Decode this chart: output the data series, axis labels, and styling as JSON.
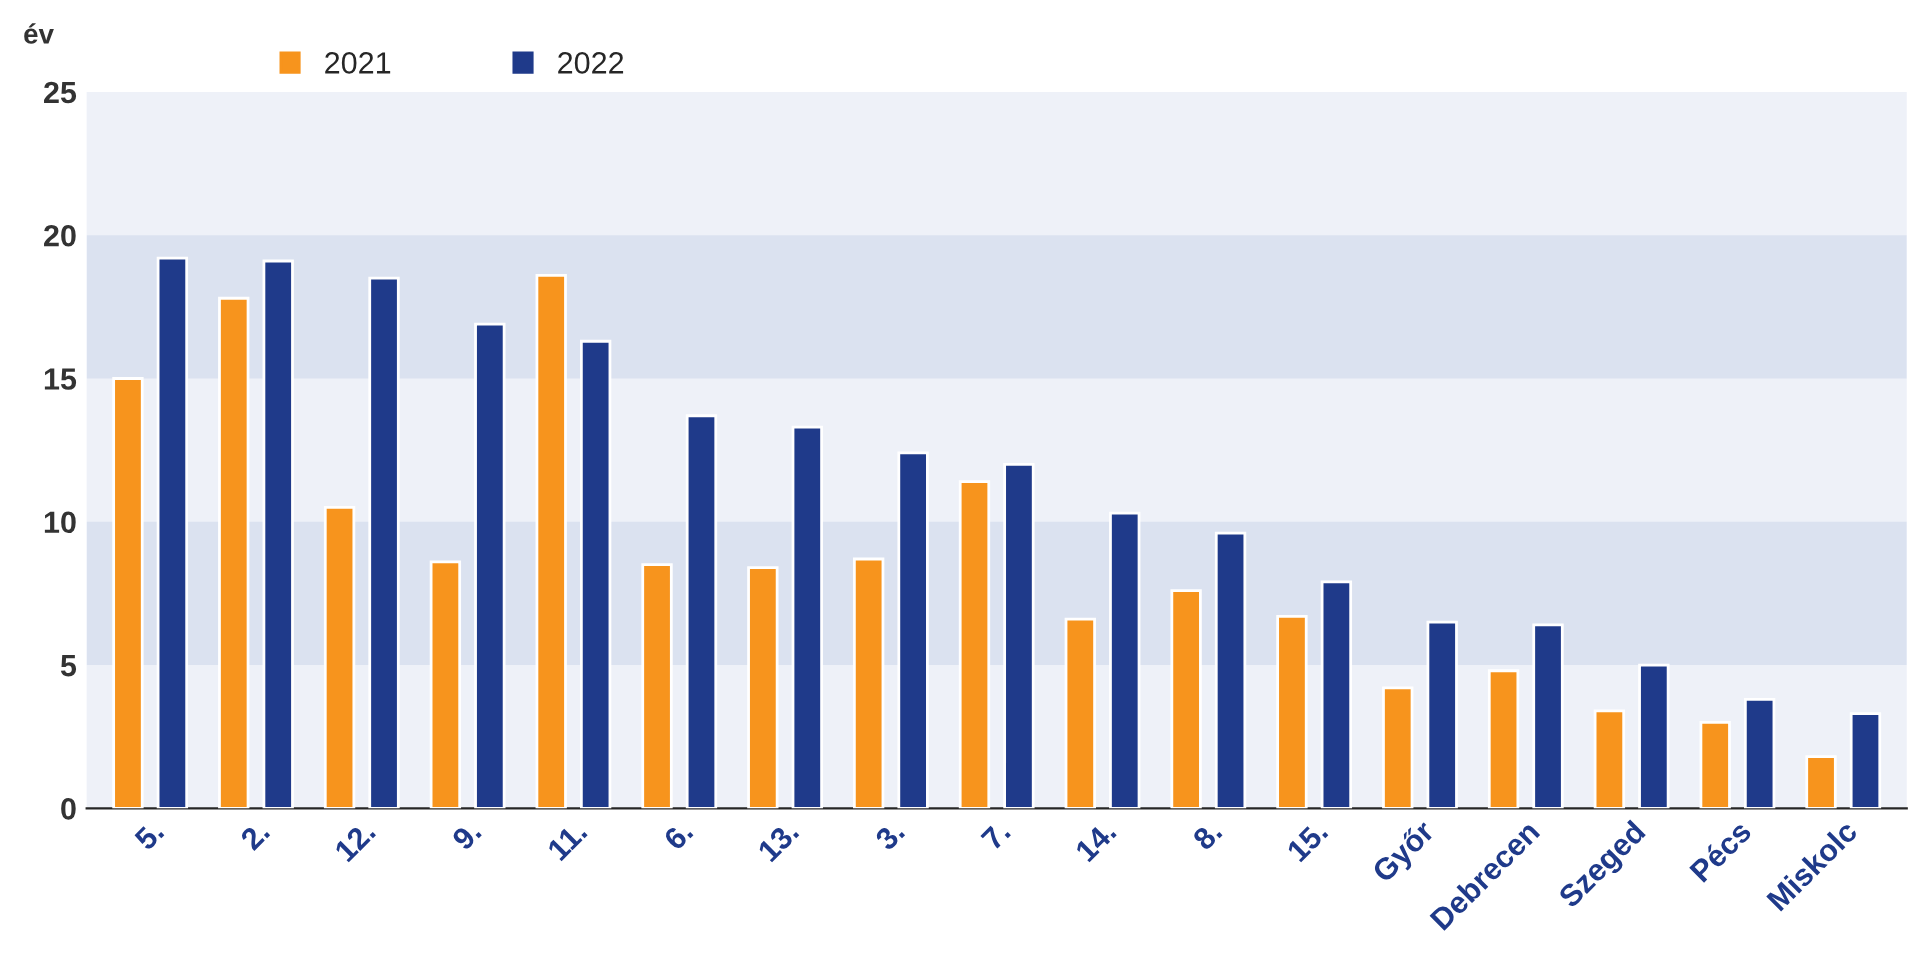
{
  "chart_data": {
    "type": "bar",
    "ylabel": "év",
    "categories": [
      "5.",
      "2.",
      "12.",
      "9.",
      "11.",
      "6.",
      "13.",
      "3.",
      "7.",
      "14.",
      "8.",
      "15.",
      "Győr",
      "Debrecen",
      "Szeged",
      "Pécs",
      "Miskolc"
    ],
    "series": [
      {
        "name": "2021",
        "color": "#f7941d",
        "values": [
          15.0,
          17.8,
          10.5,
          8.6,
          18.6,
          8.5,
          8.4,
          8.7,
          11.4,
          6.6,
          7.6,
          6.7,
          4.2,
          4.8,
          3.4,
          3.0,
          1.8
        ]
      },
      {
        "name": "2022",
        "color": "#1f3a8a",
        "values": [
          19.2,
          19.1,
          18.5,
          16.9,
          16.3,
          13.7,
          13.3,
          12.4,
          12.0,
          10.3,
          9.6,
          7.9,
          6.5,
          6.4,
          5.0,
          3.8,
          3.3
        ]
      }
    ],
    "ylim": [
      0,
      25
    ],
    "yticks": [
      0,
      5,
      10,
      15,
      20,
      25
    ],
    "bands": [
      {
        "axis": "y",
        "from": 5,
        "to": 10,
        "color": "#dbe2f0"
      },
      {
        "axis": "y",
        "from": 15,
        "to": 20,
        "color": "#dbe2f0"
      }
    ],
    "grid": false,
    "legend": "top left"
  }
}
